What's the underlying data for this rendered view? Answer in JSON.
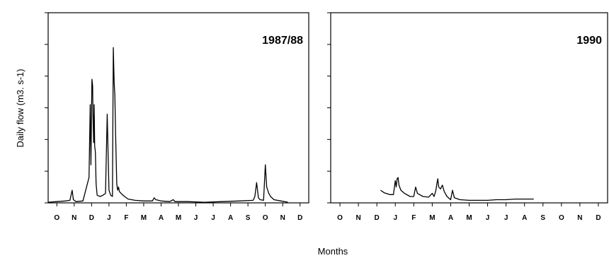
{
  "y_axis_label": "Daily flow (m3. s-1)",
  "x_axis_label": "Months",
  "chart_data": [
    {
      "type": "line",
      "title": "1987/88",
      "xlabel": "Months",
      "ylabel": "Daily flow (m3. s-1)",
      "categories": [
        "O",
        "N",
        "D",
        "J",
        "F",
        "M",
        "A",
        "M",
        "J",
        "J",
        "A",
        "S",
        "O",
        "N",
        "D"
      ],
      "ylim": [
        0,
        300
      ],
      "yticks": [
        0,
        50,
        100,
        150,
        200,
        250,
        300
      ],
      "yticks_note": "tick labels illegible in image",
      "x_unit": "month index (0 = start of O)",
      "series": [
        {
          "points": [
            [
              0.0,
              1
            ],
            [
              0.5,
              2
            ],
            [
              1.0,
              3
            ],
            [
              1.25,
              4
            ],
            [
              1.38,
              20
            ],
            [
              1.45,
              5
            ],
            [
              1.6,
              2
            ],
            [
              2.0,
              3
            ],
            [
              2.35,
              40
            ],
            [
              2.42,
              155
            ],
            [
              2.46,
              60
            ],
            [
              2.52,
              195
            ],
            [
              2.56,
              185
            ],
            [
              2.58,
              140
            ],
            [
              2.62,
              95
            ],
            [
              2.65,
              155
            ],
            [
              2.68,
              90
            ],
            [
              2.72,
              80
            ],
            [
              2.76,
              30
            ],
            [
              2.82,
              12
            ],
            [
              3.0,
              10
            ],
            [
              3.15,
              12
            ],
            [
              3.3,
              15
            ],
            [
              3.4,
              140
            ],
            [
              3.45,
              80
            ],
            [
              3.5,
              20
            ],
            [
              3.6,
              12
            ],
            [
              3.7,
              10
            ],
            [
              3.75,
              245
            ],
            [
              3.8,
              190
            ],
            [
              3.84,
              170
            ],
            [
              3.88,
              110
            ],
            [
              3.95,
              30
            ],
            [
              4.0,
              20
            ],
            [
              4.05,
              25
            ],
            [
              4.1,
              18
            ],
            [
              4.2,
              15
            ],
            [
              4.4,
              10
            ],
            [
              4.6,
              6
            ],
            [
              5.0,
              4
            ],
            [
              5.5,
              3
            ],
            [
              6.0,
              3
            ],
            [
              6.1,
              8
            ],
            [
              6.2,
              5
            ],
            [
              6.5,
              3
            ],
            [
              7.0,
              2
            ],
            [
              7.2,
              5
            ],
            [
              7.3,
              2
            ],
            [
              8.0,
              2
            ],
            [
              9.0,
              1
            ],
            [
              10.0,
              2
            ],
            [
              11.0,
              3
            ],
            [
              11.8,
              4
            ],
            [
              11.9,
              10
            ],
            [
              12.0,
              32
            ],
            [
              12.1,
              8
            ],
            [
              12.2,
              5
            ],
            [
              12.4,
              4
            ],
            [
              12.5,
              60
            ],
            [
              12.58,
              25
            ],
            [
              12.7,
              15
            ],
            [
              12.8,
              10
            ],
            [
              13.0,
              5
            ],
            [
              13.4,
              3
            ],
            [
              13.8,
              1
            ]
          ]
        }
      ]
    },
    {
      "type": "line",
      "title": "1990",
      "xlabel": "Months",
      "ylabel": "",
      "categories": [
        "O",
        "N",
        "D",
        "J",
        "F",
        "M",
        "A",
        "M",
        "J",
        "J",
        "A",
        "S",
        "O",
        "N",
        "D"
      ],
      "ylim": [
        0,
        300
      ],
      "series": [
        {
          "points": [
            [
              2.7,
              20
            ],
            [
              2.9,
              16
            ],
            [
              3.2,
              13
            ],
            [
              3.4,
              13
            ],
            [
              3.5,
              35
            ],
            [
              3.55,
              25
            ],
            [
              3.6,
              38
            ],
            [
              3.65,
              40
            ],
            [
              3.7,
              28
            ],
            [
              3.8,
              20
            ],
            [
              4.0,
              15
            ],
            [
              4.3,
              10
            ],
            [
              4.5,
              10
            ],
            [
              4.6,
              25
            ],
            [
              4.7,
              15
            ],
            [
              5.0,
              10
            ],
            [
              5.3,
              9
            ],
            [
              5.5,
              15
            ],
            [
              5.6,
              10
            ],
            [
              5.7,
              20
            ],
            [
              5.75,
              30
            ],
            [
              5.8,
              38
            ],
            [
              5.85,
              25
            ],
            [
              5.95,
              22
            ],
            [
              6.05,
              28
            ],
            [
              6.15,
              18
            ],
            [
              6.3,
              10
            ],
            [
              6.5,
              5
            ],
            [
              6.6,
              20
            ],
            [
              6.7,
              8
            ],
            [
              7.0,
              5
            ],
            [
              7.5,
              4
            ],
            [
              8.0,
              4
            ],
            [
              8.5,
              4
            ],
            [
              9.0,
              5
            ],
            [
              9.5,
              5
            ],
            [
              10.0,
              6
            ],
            [
              10.5,
              6
            ],
            [
              11.0,
              6
            ]
          ]
        }
      ]
    }
  ]
}
